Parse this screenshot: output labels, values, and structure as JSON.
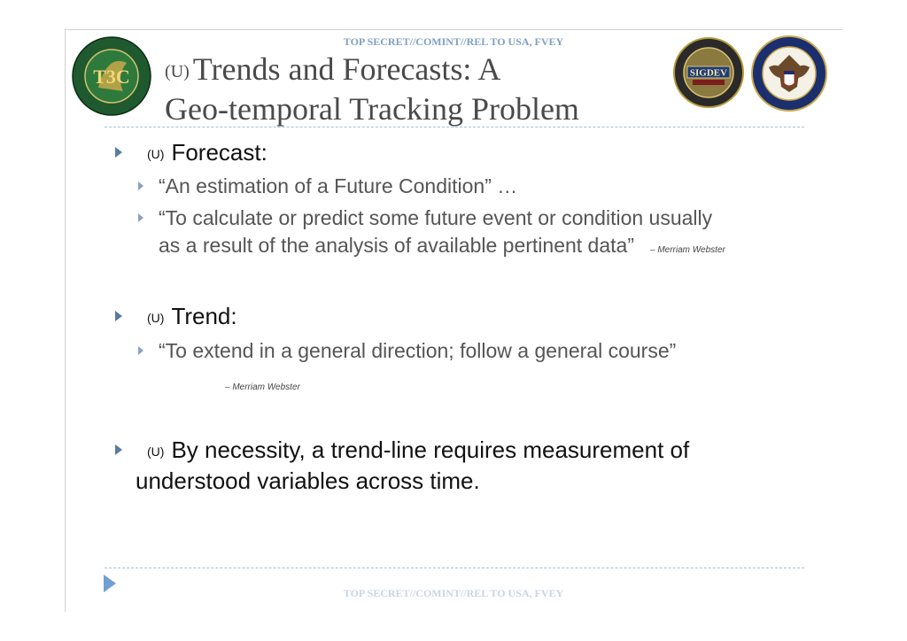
{
  "classification": {
    "top": "TOP SECRET//COMINT//REL TO USA, FVEY",
    "bottom": "TOP SECRET//COMINT//REL TO USA, FVEY"
  },
  "title": {
    "marking": "(U)",
    "line1": "Trends and Forecasts: A",
    "line2": "Geo-temporal Tracking Problem"
  },
  "logos": {
    "left_text": "TARGET TECHNOLOGY TRENDS CENTER · PREDICT · PLAN · PREVENT",
    "left_mono": "T3C",
    "sigdev_ring": "NATIONAL SECURITY AGENCY · SIGNALS INTELLIGENCE · DEVELOPMENT",
    "sigdev_center": "SIGDEV",
    "nsa_ring": "NATIONAL SECURITY AGENCY · UNITED STATES OF AMERICA"
  },
  "bullets": [
    {
      "marking": "(U)",
      "label": "Forecast:",
      "subs": [
        {
          "text": "“An estimation of a Future Condition” …"
        },
        {
          "line1": "“To calculate or predict some future event or condition usually",
          "line2": "as a result of the analysis of available pertinent data”",
          "source": "– Merriam Webster"
        }
      ]
    },
    {
      "marking": "(U)",
      "label": "Trend:",
      "subs": [
        {
          "text": "“To extend in a general direction; follow a general course”",
          "source": "– Merriam Webster"
        }
      ]
    },
    {
      "marking": "(U)",
      "line1": "By necessity, a trend-line requires measurement of",
      "line2": "understood variables across time."
    }
  ],
  "colors": {
    "classification_top": "#7f9fc4",
    "classification_bottom": "#c8d5e5",
    "bullet_marker": "#5a7aa0",
    "divider": "#a8bfd6",
    "nav_arrow": "#6f9fd4"
  },
  "icons": {
    "bullet": "triangle-right-icon",
    "nav": "next-slide-arrow-icon"
  }
}
